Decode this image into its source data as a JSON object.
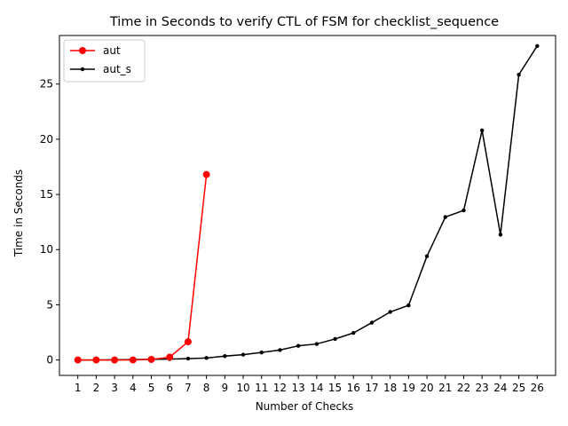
{
  "chart_data": {
    "type": "line",
    "title": "Time in Seconds to verify CTL of FSM for checklist_sequence",
    "xlabel": "Number of Checks",
    "ylabel": "Time in Seconds",
    "x": [
      1,
      2,
      3,
      4,
      5,
      6,
      7,
      8,
      9,
      10,
      11,
      12,
      13,
      14,
      15,
      16,
      17,
      18,
      19,
      20,
      21,
      22,
      23,
      24,
      25,
      26
    ],
    "xlim": [
      0,
      27
    ],
    "ylim": [
      -1.4,
      29.4
    ],
    "yticks": [
      0,
      5,
      10,
      15,
      20,
      25
    ],
    "grid": false,
    "legend": "top-left",
    "series": [
      {
        "name": "aut",
        "color": "#ff0000",
        "marker": "large-circle",
        "x": [
          1,
          2,
          3,
          4,
          5,
          6,
          7,
          8
        ],
        "values": [
          0.0,
          0.0,
          0.0,
          0.0,
          0.05,
          0.25,
          1.65,
          16.8
        ]
      },
      {
        "name": "aut_s",
        "color": "#000000",
        "marker": "small-dot",
        "x": [
          1,
          2,
          3,
          4,
          5,
          6,
          7,
          8,
          9,
          10,
          11,
          12,
          13,
          14,
          15,
          16,
          17,
          18,
          19,
          20,
          21,
          22,
          23,
          24,
          25,
          26
        ],
        "values": [
          0.0,
          0.0,
          0.02,
          0.04,
          0.06,
          0.08,
          0.12,
          0.18,
          0.35,
          0.48,
          0.68,
          0.9,
          1.28,
          1.45,
          1.9,
          2.45,
          3.38,
          4.35,
          4.95,
          9.4,
          12.95,
          13.55,
          20.8,
          11.35,
          25.85,
          28.45
        ]
      }
    ]
  }
}
